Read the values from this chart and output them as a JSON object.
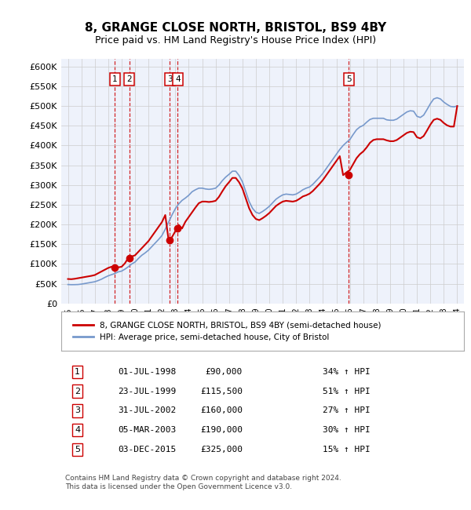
{
  "title": "8, GRANGE CLOSE NORTH, BRISTOL, BS9 4BY",
  "subtitle": "Price paid vs. HM Land Registry's House Price Index (HPI)",
  "ylim": [
    0,
    620000
  ],
  "yticks": [
    0,
    50000,
    100000,
    150000,
    200000,
    250000,
    300000,
    350000,
    400000,
    450000,
    500000,
    550000,
    600000
  ],
  "ytick_labels": [
    "£0",
    "£50K",
    "£100K",
    "£150K",
    "£200K",
    "£250K",
    "£300K",
    "£350K",
    "£400K",
    "£450K",
    "£500K",
    "£550K",
    "£600K"
  ],
  "background_color": "#ffffff",
  "plot_background_color": "#eef2fb",
  "grid_color": "#cccccc",
  "red_line_color": "#cc0000",
  "blue_line_color": "#7799cc",
  "sale_marker_color": "#cc0000",
  "sale_vline_color": "#cc0000",
  "sale_dates_x": [
    1998.5,
    1999.56,
    2002.58,
    2003.17,
    2015.92
  ],
  "sale_prices_y": [
    90000,
    115500,
    160000,
    190000,
    325000
  ],
  "sale_labels": [
    "1",
    "2",
    "3",
    "4",
    "5"
  ],
  "legend_line1": "8, GRANGE CLOSE NORTH, BRISTOL, BS9 4BY (semi-detached house)",
  "legend_line2": "HPI: Average price, semi-detached house, City of Bristol",
  "table_rows": [
    [
      "1",
      "01-JUL-1998",
      "£90,000",
      "34% ↑ HPI"
    ],
    [
      "2",
      "23-JUL-1999",
      "£115,500",
      "51% ↑ HPI"
    ],
    [
      "3",
      "31-JUL-2002",
      "£160,000",
      "27% ↑ HPI"
    ],
    [
      "4",
      "05-MAR-2003",
      "£190,000",
      "30% ↑ HPI"
    ],
    [
      "5",
      "03-DEC-2015",
      "£325,000",
      "15% ↑ HPI"
    ]
  ],
  "footnote": "Contains HM Land Registry data © Crown copyright and database right 2024.\nThis data is licensed under the Open Government Licence v3.0.",
  "line_x": [
    1995.0,
    1995.25,
    1995.5,
    1995.75,
    1996.0,
    1996.25,
    1996.5,
    1996.75,
    1997.0,
    1997.25,
    1997.5,
    1997.75,
    1998.0,
    1998.25,
    1998.5,
    1998.75,
    1999.0,
    1999.25,
    1999.5,
    1999.75,
    2000.0,
    2000.25,
    2000.5,
    2000.75,
    2001.0,
    2001.25,
    2001.5,
    2001.75,
    2002.0,
    2002.25,
    2002.5,
    2002.75,
    2003.0,
    2003.25,
    2003.5,
    2003.75,
    2004.0,
    2004.25,
    2004.5,
    2004.75,
    2005.0,
    2005.25,
    2005.5,
    2005.75,
    2006.0,
    2006.25,
    2006.5,
    2006.75,
    2007.0,
    2007.25,
    2007.5,
    2007.75,
    2008.0,
    2008.25,
    2008.5,
    2008.75,
    2009.0,
    2009.25,
    2009.5,
    2009.75,
    2010.0,
    2010.25,
    2010.5,
    2010.75,
    2011.0,
    2011.25,
    2011.5,
    2011.75,
    2012.0,
    2012.25,
    2012.5,
    2012.75,
    2013.0,
    2013.25,
    2013.5,
    2013.75,
    2014.0,
    2014.25,
    2014.5,
    2014.75,
    2015.0,
    2015.25,
    2015.5,
    2015.75,
    2016.0,
    2016.25,
    2016.5,
    2016.75,
    2017.0,
    2017.25,
    2017.5,
    2017.75,
    2018.0,
    2018.25,
    2018.5,
    2018.75,
    2019.0,
    2019.25,
    2019.5,
    2019.75,
    2020.0,
    2020.25,
    2020.5,
    2020.75,
    2021.0,
    2021.25,
    2021.5,
    2021.75,
    2022.0,
    2022.25,
    2022.5,
    2022.75,
    2023.0,
    2023.25,
    2023.5,
    2023.75,
    2024.0
  ],
  "hpi_y": [
    48000,
    47600,
    47700,
    48000,
    49000,
    50500,
    52000,
    53500,
    55000,
    58000,
    61500,
    66000,
    70000,
    73000,
    76000,
    80000,
    82000,
    87000,
    93000,
    100000,
    105000,
    114000,
    122000,
    128000,
    135000,
    144000,
    153000,
    162000,
    172000,
    188000,
    206000,
    224000,
    240000,
    252000,
    261000,
    267000,
    274000,
    283000,
    288000,
    292000,
    292000,
    290000,
    289000,
    290000,
    292000,
    300000,
    311000,
    320000,
    327000,
    335000,
    335000,
    324000,
    308000,
    283000,
    258000,
    241000,
    231000,
    228000,
    233000,
    239000,
    246000,
    255000,
    264000,
    270000,
    275000,
    277000,
    276000,
    275000,
    277000,
    282000,
    288000,
    292000,
    295000,
    302000,
    311000,
    320000,
    330000,
    342000,
    354000,
    366000,
    378000,
    390000,
    400000,
    408000,
    415000,
    428000,
    440000,
    447000,
    451000,
    459000,
    466000,
    469000,
    469000,
    469000,
    469000,
    465000,
    464000,
    464000,
    467000,
    473000,
    479000,
    485000,
    488000,
    487000,
    474000,
    471000,
    477000,
    491000,
    506000,
    518000,
    521000,
    518000,
    510000,
    504000,
    499000,
    498000,
    500000
  ],
  "red_y": [
    62000,
    61500,
    62500,
    64000,
    65500,
    67000,
    68500,
    70000,
    72000,
    76500,
    81000,
    85500,
    90000,
    93000,
    90000,
    91500,
    93000,
    102000,
    115500,
    119000,
    122000,
    131000,
    140000,
    149000,
    158000,
    170000,
    182000,
    194000,
    206000,
    224000,
    160000,
    168000,
    183000,
    199000,
    190000,
    207000,
    219000,
    231000,
    243000,
    254000,
    258000,
    258000,
    257000,
    258000,
    260000,
    270000,
    284000,
    297000,
    307000,
    318000,
    318000,
    307000,
    291000,
    266000,
    241000,
    224000,
    214000,
    211000,
    216000,
    222000,
    229000,
    238000,
    247000,
    253000,
    258000,
    260000,
    259000,
    258000,
    260000,
    265000,
    271000,
    274000,
    278000,
    285000,
    294000,
    303000,
    313000,
    325000,
    337000,
    349000,
    361000,
    373000,
    325000,
    332000,
    338000,
    353000,
    368000,
    378000,
    385000,
    395000,
    407000,
    414000,
    416000,
    416000,
    416000,
    413000,
    411000,
    411000,
    414000,
    420000,
    426000,
    432000,
    435000,
    434000,
    421000,
    418000,
    424000,
    438000,
    453000,
    465000,
    468000,
    465000,
    457000,
    451000,
    448000,
    448000,
    500000
  ]
}
